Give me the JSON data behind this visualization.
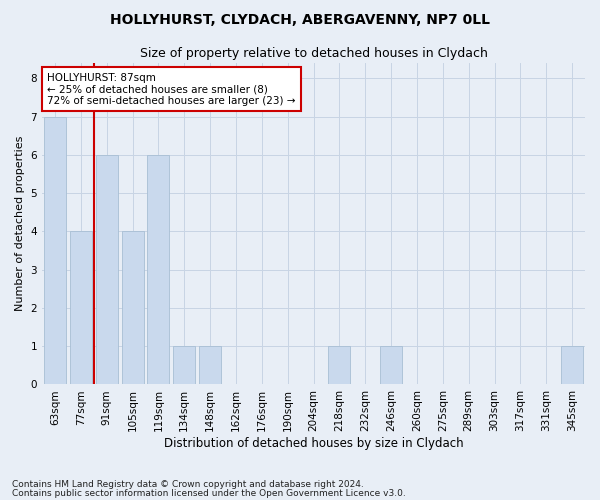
{
  "title": "HOLLYHURST, CLYDACH, ABERGAVENNY, NP7 0LL",
  "subtitle": "Size of property relative to detached houses in Clydach",
  "xlabel": "Distribution of detached houses by size in Clydach",
  "ylabel": "Number of detached properties",
  "categories": [
    "63sqm",
    "77sqm",
    "91sqm",
    "105sqm",
    "119sqm",
    "134sqm",
    "148sqm",
    "162sqm",
    "176sqm",
    "190sqm",
    "204sqm",
    "218sqm",
    "232sqm",
    "246sqm",
    "260sqm",
    "275sqm",
    "289sqm",
    "303sqm",
    "317sqm",
    "331sqm",
    "345sqm"
  ],
  "values": [
    7,
    4,
    6,
    4,
    6,
    1,
    1,
    0,
    0,
    0,
    0,
    1,
    0,
    1,
    0,
    0,
    0,
    0,
    0,
    0,
    1
  ],
  "bar_color": "#c9d9ed",
  "bar_edge_color": "#a8bfd4",
  "highlight_color": "#cc0000",
  "annotation_text": "HOLLYHURST: 87sqm\n← 25% of detached houses are smaller (8)\n72% of semi-detached houses are larger (23) →",
  "annotation_box_color": "#ffffff",
  "annotation_box_edge": "#cc0000",
  "ylim": [
    0,
    8.4
  ],
  "yticks": [
    0,
    1,
    2,
    3,
    4,
    5,
    6,
    7,
    8
  ],
  "grid_color": "#c8d4e4",
  "background_color": "#e8eef6",
  "footer1": "Contains HM Land Registry data © Crown copyright and database right 2024.",
  "footer2": "Contains public sector information licensed under the Open Government Licence v3.0.",
  "title_fontsize": 10,
  "subtitle_fontsize": 9,
  "xlabel_fontsize": 8.5,
  "ylabel_fontsize": 8,
  "tick_fontsize": 7.5,
  "annotation_fontsize": 7.5,
  "footer_fontsize": 6.5
}
